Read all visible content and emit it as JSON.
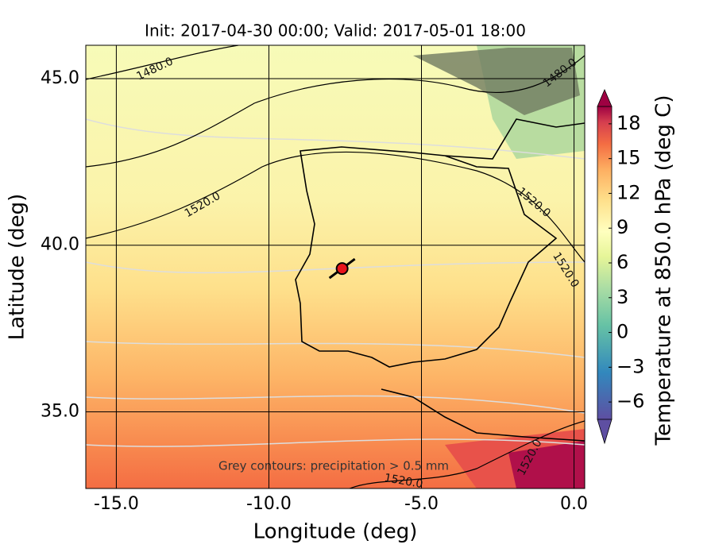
{
  "chart_data": {
    "type": "map",
    "title": "Init: 2017-04-30 00:00; Valid: 2017-05-01 18:00",
    "x_label": "Longitude (deg)",
    "y_label": "Latitude (deg)",
    "xlim": [
      -16,
      0.35
    ],
    "ylim": [
      32.7,
      46.0
    ],
    "xticks": [
      {
        "value": -15,
        "label": "-15.0"
      },
      {
        "value": -10,
        "label": "-10.0"
      },
      {
        "value": -5,
        "label": "-5.0"
      },
      {
        "value": 0,
        "label": "0.0"
      }
    ],
    "yticks": [
      {
        "value": 35,
        "label": "35.0"
      },
      {
        "value": 40,
        "label": "40.0"
      },
      {
        "value": 45,
        "label": "45.0"
      }
    ],
    "grid": true,
    "colorbar": {
      "label": "Temperature at 850.0 hPa (deg C)",
      "lim": [
        -7.5,
        19.5
      ],
      "ticks": [
        {
          "value": -6,
          "label": "−6"
        },
        {
          "value": -3,
          "label": "−3"
        },
        0,
        3,
        6,
        9,
        12,
        15,
        18
      ]
    },
    "contour_labels": [
      "1480.0",
      "1480.0",
      "1520.0",
      "1520.0",
      "1520.0",
      "1520.0",
      "1520.0"
    ],
    "annotation": "Grey contours: precipitation  > 0.5 mm",
    "marker": {
      "lon": -7.6,
      "lat": 39.3,
      "color": "#e8141c"
    }
  }
}
